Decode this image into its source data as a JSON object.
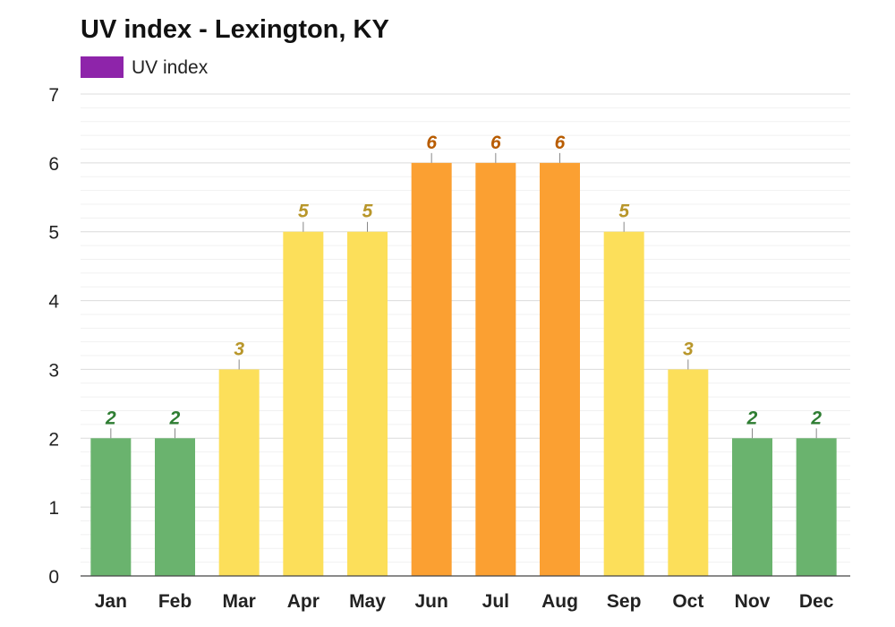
{
  "chart_data": {
    "type": "bar",
    "title": "UV index - Lexington, KY",
    "xlabel": "",
    "ylabel": "",
    "ylim": [
      0,
      7
    ],
    "yticks": [
      0,
      1,
      2,
      3,
      4,
      5,
      6,
      7
    ],
    "grid": true,
    "legend": {
      "placement": "top-left",
      "entries": [
        {
          "label": "UV index",
          "color": "#8e24aa"
        }
      ]
    },
    "categories": [
      "Jan",
      "Feb",
      "Mar",
      "Apr",
      "May",
      "Jun",
      "Jul",
      "Aug",
      "Sep",
      "Oct",
      "Nov",
      "Dec"
    ],
    "series": [
      {
        "name": "UV index",
        "values": [
          2,
          2,
          3,
          5,
          5,
          6,
          6,
          6,
          5,
          3,
          2,
          2
        ]
      }
    ],
    "data_labels": [
      "2",
      "2",
      "3",
      "5",
      "5",
      "6",
      "6",
      "6",
      "5",
      "3",
      "2",
      "2"
    ],
    "level_colors": {
      "low": {
        "bar": "#6ab36e",
        "label": "#2e7d32"
      },
      "moderate": {
        "bar": "#fcdf5a",
        "label": "#b8962a"
      },
      "high": {
        "bar": "#fba032",
        "label": "#b85c00"
      }
    }
  }
}
